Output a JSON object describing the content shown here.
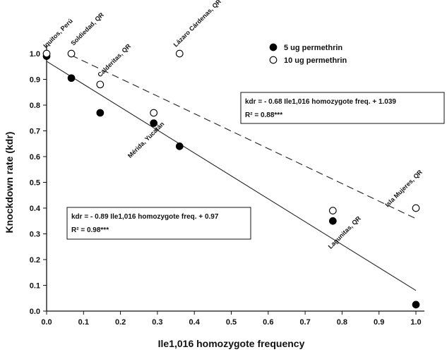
{
  "chart_data": {
    "type": "scatter",
    "xlabel": "Ile1,016 homozygote frequency",
    "ylabel": "Knockdown rate (kdr)",
    "xlim": [
      0.0,
      1.0
    ],
    "ylim": [
      0.0,
      1.0
    ],
    "x_ticks": [
      "0.0",
      "0.1",
      "0.2",
      "0.3",
      "0.4",
      "0.5",
      "0.6",
      "0.7",
      "0.8",
      "0.9",
      "1.0"
    ],
    "y_ticks": [
      "0.0",
      "0.1",
      "0.2",
      "0.3",
      "0.4",
      "0.5",
      "0.6",
      "0.7",
      "0.8",
      "0.9",
      "1.0"
    ],
    "grid": false,
    "legend_position": "top-right",
    "series": [
      {
        "name": "5 ug permethrin",
        "marker": "filled-circle",
        "color": "#000000",
        "x": [
          0.0,
          0.067,
          0.145,
          0.29,
          0.36,
          0.775,
          1.0
        ],
        "y": [
          0.99,
          0.905,
          0.77,
          0.73,
          0.64,
          0.35,
          0.025
        ]
      },
      {
        "name": "10 ug permethrin",
        "marker": "open-circle",
        "color": "#000000",
        "x": [
          0.0,
          0.067,
          0.145,
          0.29,
          0.36,
          0.775,
          1.0
        ],
        "y": [
          1.0,
          1.0,
          0.88,
          0.77,
          1.0,
          0.39,
          0.4
        ]
      }
    ],
    "regression_lines": [
      {
        "series": "5 ug permethrin",
        "style": "solid",
        "slope": -0.89,
        "intercept": 0.97,
        "x_range": [
          0.0,
          1.0
        ]
      },
      {
        "series": "10 ug permethrin",
        "style": "dashed",
        "slope": -0.68,
        "intercept": 1.039,
        "x_range": [
          0.067,
          1.0
        ]
      }
    ],
    "annotations": [
      {
        "text": "Iquitos, Perú",
        "x": 0.0,
        "y": 0.99
      },
      {
        "text": "Soldiedad, QR",
        "x": 0.067,
        "y": 1.0
      },
      {
        "text": "Calderitas, QR",
        "x": 0.145,
        "y": 0.88
      },
      {
        "text": "Lázaro Cárdenas, QR",
        "x": 0.36,
        "y": 1.0
      },
      {
        "text": "Mérida, Yucatán",
        "x": 0.29,
        "y": 0.73
      },
      {
        "text": "Lagunitas, QR",
        "x": 0.775,
        "y": 0.35
      },
      {
        "text": "Isla Mujeres, QR",
        "x": 1.0,
        "y": 0.4
      }
    ],
    "equation_boxes": [
      {
        "line1": "kdr =  - 0.68 Ile1,016 homozygote freq. + 1.039",
        "line2": "R² = 0.88***",
        "series": "10 ug permethrin"
      },
      {
        "line1": "kdr = - 0.89 Ile1,016 homozygote freq. + 0.97",
        "line2": "R² = 0.98***",
        "series": "5 ug permethrin"
      }
    ]
  }
}
